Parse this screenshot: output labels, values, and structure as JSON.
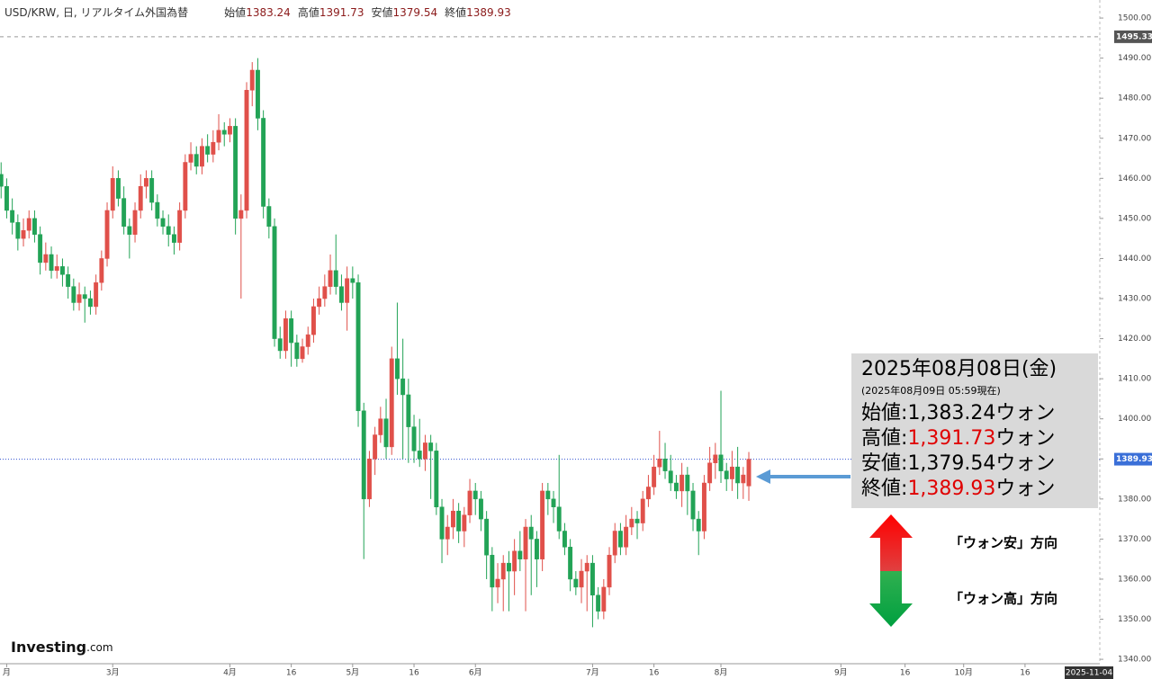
{
  "chart_data": {
    "type": "candlestick",
    "header": {
      "title": "USD/KRW, 日, リアルタイム外国為替",
      "ohlc": [
        {
          "label": "始値",
          "value": 1383.24
        },
        {
          "label": "高値",
          "value": 1391.73
        },
        {
          "label": "安値",
          "value": 1379.54
        },
        {
          "label": "終値",
          "value": 1389.93
        }
      ]
    },
    "up_color": "#e0504a",
    "down_color": "#22a356",
    "open": [
      1461,
      1458,
      1452,
      1449,
      1445,
      1447,
      1450,
      1446,
      1439,
      1441,
      1437,
      1438,
      1436,
      1433,
      1429,
      1431,
      1430,
      1428,
      1434,
      1440,
      1452,
      1460,
      1455,
      1448,
      1446,
      1452,
      1458,
      1460,
      1454,
      1450,
      1448,
      1446,
      1444,
      1452,
      1464,
      1466,
      1463,
      1468,
      1466,
      1469,
      1472,
      1471,
      1473,
      1450,
      1452,
      1482,
      1487,
      1475,
      1453,
      1448,
      1420,
      1417,
      1425,
      1419,
      1415,
      1418,
      1421,
      1428,
      1430,
      1433,
      1437,
      1433,
      1429,
      1435,
      1434,
      1402,
      1380,
      1390,
      1396,
      1400,
      1393,
      1415,
      1410,
      1406,
      1398,
      1392,
      1390,
      1394,
      1392,
      1378,
      1370,
      1373,
      1377,
      1372,
      1376,
      1382,
      1380,
      1375,
      1366,
      1358,
      1360,
      1364,
      1362,
      1367,
      1365,
      1373,
      1370,
      1365,
      1382,
      1380,
      1378,
      1372,
      1368,
      1360,
      1358,
      1362,
      1364,
      1356,
      1352,
      1358,
      1366,
      1372,
      1368,
      1373,
      1375,
      1374,
      1380,
      1383,
      1388,
      1390,
      1387,
      1384,
      1382,
      1386,
      1382,
      1375,
      1372,
      1384,
      1389,
      1391,
      1387,
      1385,
      1388,
      1384,
      1383.24
    ],
    "high": [
      1464,
      1460,
      1455,
      1451,
      1450,
      1452,
      1452,
      1448,
      1444,
      1443,
      1441,
      1440,
      1438,
      1435,
      1434,
      1433,
      1432,
      1436,
      1442,
      1454,
      1463,
      1462,
      1458,
      1450,
      1454,
      1461,
      1462,
      1462,
      1456,
      1452,
      1451,
      1448,
      1454,
      1466,
      1469,
      1468,
      1470,
      1471,
      1472,
      1476,
      1474,
      1475,
      1475,
      1456,
      1484,
      1489,
      1490,
      1477,
      1455,
      1450,
      1423,
      1427,
      1427,
      1421,
      1420,
      1423,
      1430,
      1433,
      1436,
      1441,
      1446,
      1436,
      1438,
      1438,
      1436,
      1404,
      1392,
      1398,
      1403,
      1405,
      1418,
      1429,
      1420,
      1410,
      1401,
      1400,
      1396,
      1396,
      1394,
      1380,
      1376,
      1380,
      1379,
      1378,
      1385,
      1384,
      1382,
      1377,
      1368,
      1364,
      1366,
      1367,
      1370,
      1372,
      1375,
      1376,
      1372,
      1384,
      1384,
      1382,
      1391,
      1374,
      1370,
      1362,
      1365,
      1366,
      1366,
      1358,
      1360,
      1368,
      1374,
      1374,
      1376,
      1378,
      1377,
      1382,
      1386,
      1391,
      1397,
      1394,
      1391,
      1386,
      1389,
      1388,
      1384,
      1377,
      1386,
      1393,
      1394,
      1407,
      1389,
      1392,
      1393,
      1388,
      1391.73
    ],
    "low": [
      1455,
      1450,
      1446,
      1442,
      1443,
      1445,
      1444,
      1436,
      1437,
      1435,
      1435,
      1433,
      1430,
      1427,
      1427,
      1424,
      1426,
      1426,
      1432,
      1438,
      1450,
      1453,
      1446,
      1440,
      1444,
      1450,
      1455,
      1452,
      1448,
      1446,
      1443,
      1441,
      1442,
      1450,
      1462,
      1461,
      1461,
      1464,
      1464,
      1467,
      1468,
      1469,
      1446,
      1430,
      1450,
      1478,
      1472,
      1450,
      1445,
      1418,
      1415,
      1415,
      1413,
      1413,
      1414,
      1416,
      1419,
      1426,
      1428,
      1431,
      1431,
      1427,
      1422,
      1430,
      1398,
      1365,
      1378,
      1386,
      1394,
      1390,
      1391,
      1406,
      1390,
      1389,
      1389,
      1388,
      1387,
      1380,
      1376,
      1364,
      1366,
      1370,
      1369,
      1368,
      1374,
      1376,
      1372,
      1360,
      1352,
      1354,
      1352,
      1352,
      1356,
      1362,
      1352,
      1356,
      1358,
      1362,
      1376,
      1374,
      1370,
      1366,
      1357,
      1356,
      1354,
      1352,
      1348,
      1350,
      1350,
      1356,
      1364,
      1366,
      1366,
      1371,
      1370,
      1372,
      1378,
      1381,
      1386,
      1385,
      1382,
      1380,
      1378,
      1376,
      1372,
      1366,
      1370,
      1382,
      1385,
      1384,
      1382,
      1382,
      1380,
      1380,
      1379.54
    ],
    "close": [
      1458,
      1452,
      1449,
      1445,
      1447,
      1450,
      1446,
      1439,
      1441,
      1437,
      1438,
      1436,
      1433,
      1429,
      1431,
      1430,
      1428,
      1434,
      1440,
      1452,
      1460,
      1455,
      1448,
      1446,
      1452,
      1458,
      1460,
      1454,
      1450,
      1448,
      1446,
      1444,
      1452,
      1464,
      1466,
      1463,
      1468,
      1466,
      1469,
      1472,
      1471,
      1473,
      1450,
      1452,
      1482,
      1487,
      1475,
      1453,
      1448,
      1420,
      1417,
      1425,
      1419,
      1415,
      1418,
      1421,
      1428,
      1430,
      1433,
      1437,
      1433,
      1429,
      1435,
      1434,
      1402,
      1380,
      1390,
      1396,
      1400,
      1393,
      1415,
      1410,
      1406,
      1398,
      1392,
      1390,
      1394,
      1392,
      1378,
      1370,
      1373,
      1377,
      1372,
      1376,
      1382,
      1380,
      1375,
      1366,
      1358,
      1360,
      1364,
      1362,
      1367,
      1365,
      1373,
      1370,
      1365,
      1382,
      1380,
      1378,
      1372,
      1368,
      1360,
      1358,
      1362,
      1364,
      1356,
      1352,
      1358,
      1366,
      1372,
      1368,
      1373,
      1375,
      1374,
      1380,
      1383,
      1388,
      1390,
      1387,
      1384,
      1382,
      1386,
      1382,
      1375,
      1372,
      1384,
      1389,
      1391,
      1387,
      1385,
      1388,
      1384,
      1386,
      1389.93
    ],
    "xlim": [
      -0.2,
      196.9
    ],
    "xticks": [
      {
        "value": 1,
        "label": "月"
      },
      {
        "value": 20,
        "label": "3月"
      },
      {
        "value": 41,
        "label": "4月"
      },
      {
        "value": 52,
        "label": "16"
      },
      {
        "value": 63,
        "label": "5月"
      },
      {
        "value": 74,
        "label": "16"
      },
      {
        "value": 85,
        "label": "6月"
      },
      {
        "value": 106,
        "label": "7月"
      },
      {
        "value": 117,
        "label": "16"
      },
      {
        "value": 129,
        "label": "8月"
      },
      {
        "value": 150.5,
        "label": "9月"
      },
      {
        "value": 162,
        "label": "16"
      },
      {
        "value": 172.5,
        "label": "10月"
      },
      {
        "value": 183.5,
        "label": "16"
      }
    ],
    "x_cursor_label": "2025-11-04",
    "ylim": [
      1338.9,
      1504.5
    ],
    "yticks": [
      {
        "value": 1340,
        "label": "1340.00"
      },
      {
        "value": 1350,
        "label": "1350.00"
      },
      {
        "value": 1360,
        "label": "1360.00"
      },
      {
        "value": 1370,
        "label": "1370.00"
      },
      {
        "value": 1380,
        "label": "1380.00"
      },
      {
        "value": 1390,
        "label": "1390.00"
      },
      {
        "value": 1400,
        "label": "1400.00"
      },
      {
        "value": 1410,
        "label": "1410.00"
      },
      {
        "value": 1420,
        "label": "1420.00"
      },
      {
        "value": 1430,
        "label": "1430.00"
      },
      {
        "value": 1440,
        "label": "1440.00"
      },
      {
        "value": 1450,
        "label": "1450.00"
      },
      {
        "value": 1460,
        "label": "1460.00"
      },
      {
        "value": 1470,
        "label": "1470.00"
      },
      {
        "value": 1480,
        "label": "1480.00"
      },
      {
        "value": 1490,
        "label": "1490.00"
      },
      {
        "value": 1500,
        "label": "1500.00"
      }
    ],
    "reference_line": 1495.33,
    "last_price_line": 1389.93,
    "grid": false,
    "watermark": {
      "brand": "Investing",
      "suffix": ".com"
    },
    "info_box": {
      "date": "2025年08月08日(金)",
      "note": "(2025年08月09日 05:59現在)",
      "separator": ":",
      "unit": "ウォン",
      "rows": [
        {
          "label": "始値",
          "value": "1,383.24",
          "color": "#000000"
        },
        {
          "label": "高値",
          "value": "1,391.73",
          "color": "#e00000"
        },
        {
          "label": "安値",
          "value": "1,379.54",
          "color": "#000000"
        },
        {
          "label": "終値",
          "value": "1,389.93",
          "color": "#e00000"
        }
      ]
    },
    "direction_labels": {
      "up": "「ウォン安」方向",
      "down": "「ウォン高」方向"
    }
  }
}
